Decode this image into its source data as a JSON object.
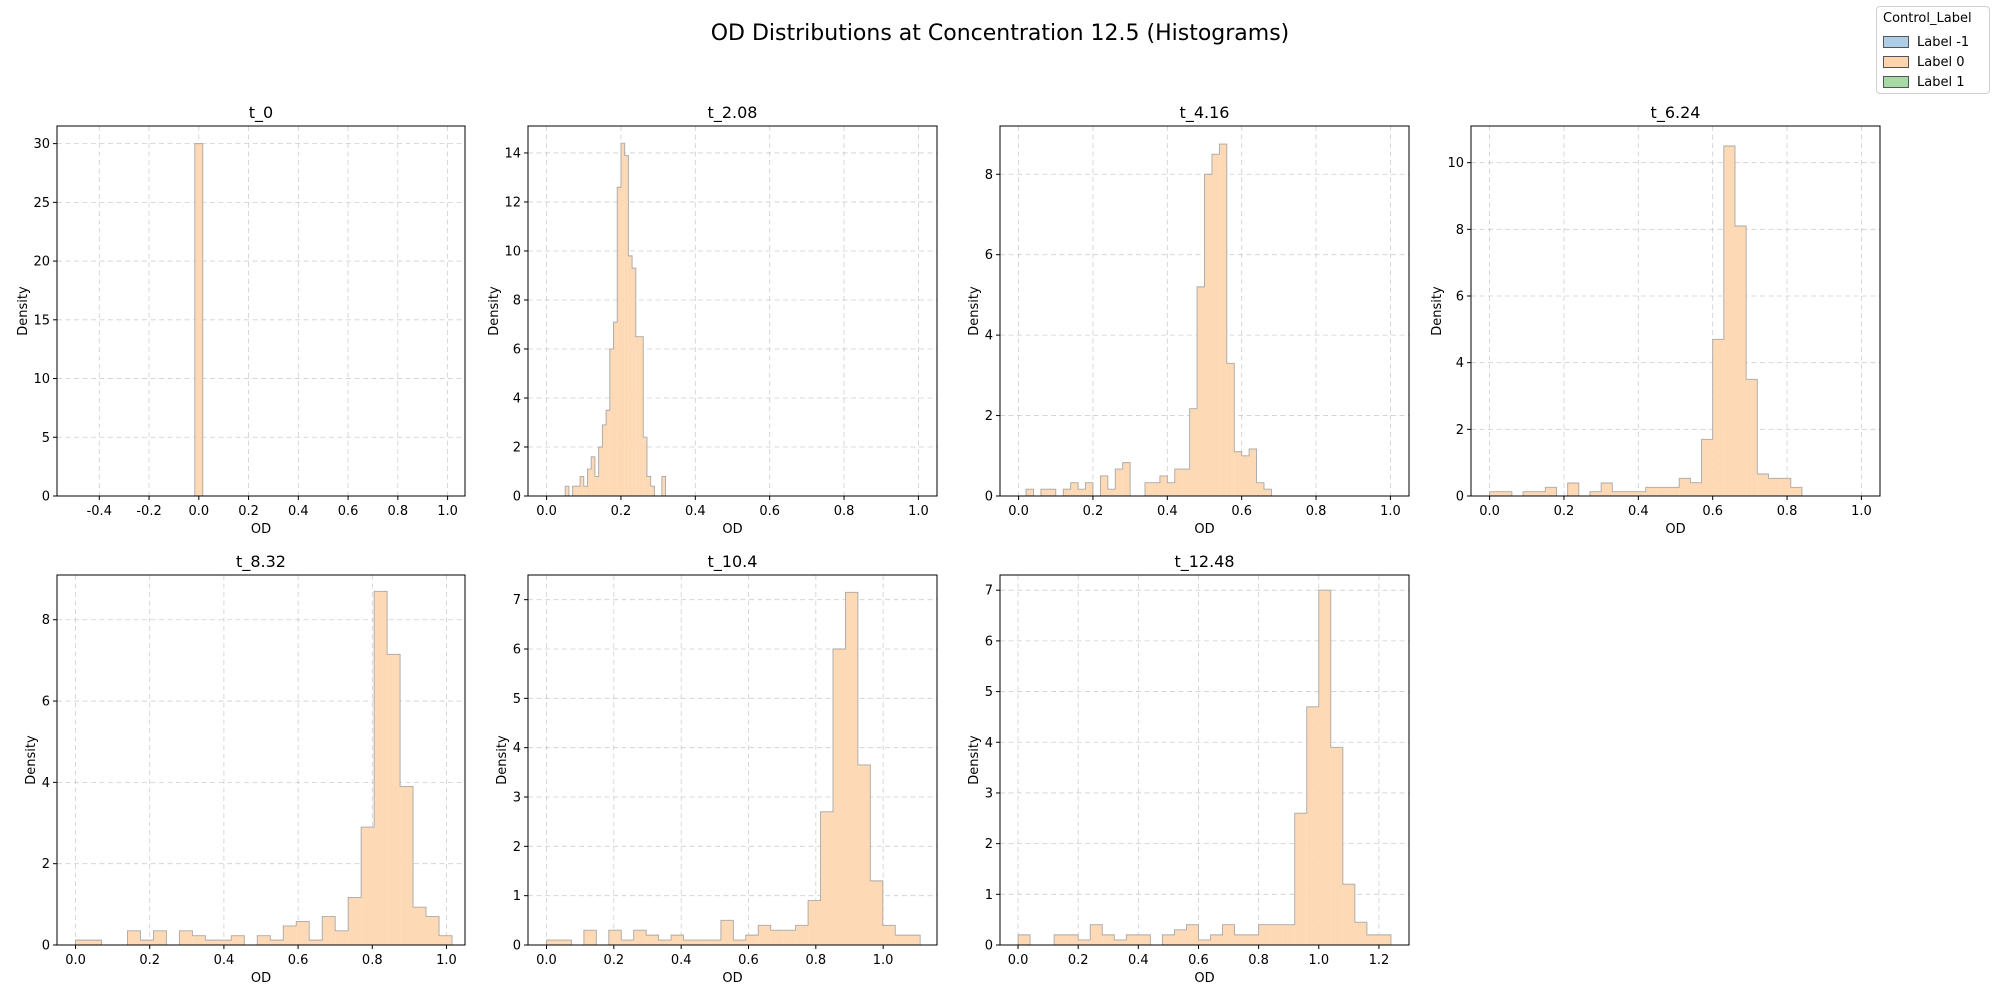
{
  "figure": {
    "title": "OD Distributions at Concentration 12.5 (Histograms)"
  },
  "legend": {
    "title": "Control_Label",
    "items": [
      {
        "label": "Label -1",
        "color": "#aecde6"
      },
      {
        "label": "Label 0",
        "color": "#fdd4ad"
      },
      {
        "label": "Label 1",
        "color": "#a6dba6"
      }
    ]
  },
  "style": {
    "hist_fill": "#fdd9b5",
    "hist_edge": "#a8a8a8"
  },
  "chart_data": [
    {
      "type": "histogram",
      "title": "t_0",
      "xlabel": "OD",
      "ylabel": "Density",
      "xlim": [
        -0.57,
        1.07
      ],
      "ylim": [
        0,
        31.5
      ],
      "xticks": [
        -0.4,
        -0.2,
        0.0,
        0.2,
        0.4,
        0.6,
        0.8,
        1.0
      ],
      "yticks": [
        0,
        5,
        10,
        15,
        20,
        25,
        30
      ],
      "grid": true,
      "series": [
        {
          "name": "Label 0",
          "bins": [
            [
              -0.016,
              0.016,
              30
            ]
          ]
        }
      ]
    },
    {
      "type": "histogram",
      "title": "t_2.08",
      "xlabel": "OD",
      "ylabel": "Density",
      "xlim": [
        -0.05,
        1.05
      ],
      "ylim": [
        0,
        15.1
      ],
      "xticks": [
        0.0,
        0.2,
        0.4,
        0.6,
        0.8,
        1.0
      ],
      "yticks": [
        0,
        2,
        4,
        6,
        8,
        10,
        12,
        14
      ],
      "grid": true,
      "series": [
        {
          "name": "Label 0",
          "bins": [
            [
              0.05,
              0.06,
              0.4
            ],
            [
              0.06,
              0.07,
              0.0
            ],
            [
              0.07,
              0.08,
              0.4
            ],
            [
              0.08,
              0.09,
              0.4
            ],
            [
              0.09,
              0.1,
              0.8
            ],
            [
              0.1,
              0.11,
              0.4
            ],
            [
              0.11,
              0.12,
              1.1
            ],
            [
              0.12,
              0.13,
              1.6
            ],
            [
              0.13,
              0.14,
              0.8
            ],
            [
              0.14,
              0.15,
              2.0
            ],
            [
              0.15,
              0.16,
              2.9
            ],
            [
              0.16,
              0.17,
              3.5
            ],
            [
              0.17,
              0.18,
              6.0
            ],
            [
              0.18,
              0.19,
              7.1
            ],
            [
              0.19,
              0.2,
              12.6
            ],
            [
              0.2,
              0.21,
              14.4
            ],
            [
              0.21,
              0.22,
              13.9
            ],
            [
              0.22,
              0.23,
              9.8
            ],
            [
              0.23,
              0.24,
              9.3
            ],
            [
              0.24,
              0.25,
              6.5
            ],
            [
              0.25,
              0.26,
              6.5
            ],
            [
              0.26,
              0.27,
              2.4
            ],
            [
              0.27,
              0.28,
              0.8
            ],
            [
              0.28,
              0.29,
              0.4
            ],
            [
              0.29,
              0.3,
              0.0
            ],
            [
              0.3,
              0.31,
              0.0
            ],
            [
              0.31,
              0.32,
              0.8
            ]
          ]
        }
      ]
    },
    {
      "type": "histogram",
      "title": "t_4.16",
      "xlabel": "OD",
      "ylabel": "Density",
      "xlim": [
        -0.05,
        1.05
      ],
      "ylim": [
        0,
        9.2
      ],
      "xticks": [
        0.0,
        0.2,
        0.4,
        0.6,
        0.8,
        1.0
      ],
      "yticks": [
        0,
        2,
        4,
        6,
        8
      ],
      "grid": true,
      "series": [
        {
          "name": "Label 0",
          "bins": [
            [
              0.0,
              0.02,
              0.0
            ],
            [
              0.02,
              0.04,
              0.17
            ],
            [
              0.04,
              0.06,
              0.0
            ],
            [
              0.06,
              0.08,
              0.17
            ],
            [
              0.08,
              0.1,
              0.17
            ],
            [
              0.1,
              0.12,
              0.0
            ],
            [
              0.12,
              0.14,
              0.17
            ],
            [
              0.14,
              0.16,
              0.33
            ],
            [
              0.16,
              0.18,
              0.17
            ],
            [
              0.18,
              0.2,
              0.33
            ],
            [
              0.2,
              0.22,
              0.0
            ],
            [
              0.22,
              0.24,
              0.5
            ],
            [
              0.24,
              0.26,
              0.17
            ],
            [
              0.26,
              0.28,
              0.67
            ],
            [
              0.28,
              0.3,
              0.83
            ],
            [
              0.3,
              0.32,
              0.0
            ],
            [
              0.32,
              0.34,
              0.0
            ],
            [
              0.34,
              0.36,
              0.33
            ],
            [
              0.36,
              0.38,
              0.33
            ],
            [
              0.38,
              0.4,
              0.5
            ],
            [
              0.4,
              0.42,
              0.33
            ],
            [
              0.42,
              0.44,
              0.67
            ],
            [
              0.44,
              0.46,
              0.67
            ],
            [
              0.46,
              0.48,
              2.17
            ],
            [
              0.48,
              0.5,
              5.2
            ],
            [
              0.5,
              0.52,
              8.0
            ],
            [
              0.52,
              0.54,
              8.5
            ],
            [
              0.54,
              0.56,
              8.75
            ],
            [
              0.56,
              0.58,
              3.3
            ],
            [
              0.58,
              0.6,
              1.1
            ],
            [
              0.6,
              0.62,
              1.0
            ],
            [
              0.62,
              0.64,
              1.17
            ],
            [
              0.64,
              0.66,
              0.33
            ],
            [
              0.66,
              0.68,
              0.17
            ]
          ]
        }
      ]
    },
    {
      "type": "histogram",
      "title": "t_6.24",
      "xlabel": "OD",
      "ylabel": "Density",
      "xlim": [
        -0.05,
        1.05
      ],
      "ylim": [
        0,
        11.1
      ],
      "xticks": [
        0.0,
        0.2,
        0.4,
        0.6,
        0.8,
        1.0
      ],
      "yticks": [
        0,
        2,
        4,
        6,
        8,
        10
      ],
      "grid": true,
      "series": [
        {
          "name": "Label 0",
          "bins": [
            [
              0.0,
              0.03,
              0.13
            ],
            [
              0.03,
              0.06,
              0.13
            ],
            [
              0.06,
              0.09,
              0.0
            ],
            [
              0.09,
              0.12,
              0.13
            ],
            [
              0.12,
              0.15,
              0.13
            ],
            [
              0.15,
              0.18,
              0.26
            ],
            [
              0.18,
              0.21,
              0.0
            ],
            [
              0.21,
              0.24,
              0.39
            ],
            [
              0.24,
              0.27,
              0.0
            ],
            [
              0.27,
              0.3,
              0.13
            ],
            [
              0.3,
              0.33,
              0.39
            ],
            [
              0.33,
              0.36,
              0.13
            ],
            [
              0.36,
              0.39,
              0.13
            ],
            [
              0.39,
              0.42,
              0.13
            ],
            [
              0.42,
              0.45,
              0.26
            ],
            [
              0.45,
              0.48,
              0.26
            ],
            [
              0.48,
              0.51,
              0.26
            ],
            [
              0.51,
              0.54,
              0.53
            ],
            [
              0.54,
              0.57,
              0.4
            ],
            [
              0.57,
              0.6,
              1.7
            ],
            [
              0.6,
              0.63,
              4.7
            ],
            [
              0.63,
              0.66,
              10.5
            ],
            [
              0.66,
              0.69,
              8.1
            ],
            [
              0.69,
              0.72,
              3.5
            ],
            [
              0.72,
              0.75,
              0.66
            ],
            [
              0.75,
              0.78,
              0.53
            ],
            [
              0.78,
              0.81,
              0.53
            ],
            [
              0.81,
              0.84,
              0.26
            ]
          ]
        }
      ]
    },
    {
      "type": "histogram",
      "title": "t_8.32",
      "xlabel": "OD",
      "ylabel": "Density",
      "xlim": [
        -0.05,
        1.05
      ],
      "ylim": [
        0,
        9.1
      ],
      "xticks": [
        0.0,
        0.2,
        0.4,
        0.6,
        0.8,
        1.0
      ],
      "yticks": [
        0,
        2,
        4,
        6,
        8
      ],
      "grid": true,
      "series": [
        {
          "name": "Label 0",
          "bins": [
            [
              0.0,
              0.035,
              0.12
            ],
            [
              0.035,
              0.07,
              0.12
            ],
            [
              0.07,
              0.105,
              0.0
            ],
            [
              0.105,
              0.14,
              0.0
            ],
            [
              0.14,
              0.175,
              0.35
            ],
            [
              0.175,
              0.21,
              0.12
            ],
            [
              0.21,
              0.245,
              0.35
            ],
            [
              0.245,
              0.28,
              0.0
            ],
            [
              0.28,
              0.315,
              0.35
            ],
            [
              0.315,
              0.35,
              0.23
            ],
            [
              0.35,
              0.385,
              0.12
            ],
            [
              0.385,
              0.42,
              0.12
            ],
            [
              0.42,
              0.455,
              0.23
            ],
            [
              0.455,
              0.49,
              0.0
            ],
            [
              0.49,
              0.525,
              0.23
            ],
            [
              0.525,
              0.56,
              0.12
            ],
            [
              0.56,
              0.595,
              0.47
            ],
            [
              0.595,
              0.63,
              0.58
            ],
            [
              0.63,
              0.665,
              0.12
            ],
            [
              0.665,
              0.7,
              0.7
            ],
            [
              0.7,
              0.735,
              0.35
            ],
            [
              0.735,
              0.77,
              1.17
            ],
            [
              0.77,
              0.805,
              2.9
            ],
            [
              0.805,
              0.84,
              8.7
            ],
            [
              0.84,
              0.875,
              7.15
            ],
            [
              0.875,
              0.91,
              3.9
            ],
            [
              0.91,
              0.945,
              0.93
            ],
            [
              0.945,
              0.98,
              0.7
            ],
            [
              0.98,
              1.015,
              0.23
            ]
          ]
        }
      ]
    },
    {
      "type": "histogram",
      "title": "t_10.4",
      "xlabel": "OD",
      "ylabel": "Density",
      "xlim": [
        -0.055,
        1.16
      ],
      "ylim": [
        0,
        7.5
      ],
      "xticks": [
        0.0,
        0.2,
        0.4,
        0.6,
        0.8,
        1.0
      ],
      "yticks": [
        0,
        1,
        2,
        3,
        4,
        5,
        6,
        7
      ],
      "grid": true,
      "series": [
        {
          "name": "Label 0",
          "bins": [
            [
              0.0,
              0.037,
              0.1
            ],
            [
              0.037,
              0.074,
              0.1
            ],
            [
              0.074,
              0.111,
              0.0
            ],
            [
              0.111,
              0.148,
              0.3
            ],
            [
              0.148,
              0.185,
              0.0
            ],
            [
              0.185,
              0.222,
              0.3
            ],
            [
              0.222,
              0.259,
              0.1
            ],
            [
              0.259,
              0.296,
              0.3
            ],
            [
              0.296,
              0.333,
              0.2
            ],
            [
              0.333,
              0.37,
              0.1
            ],
            [
              0.37,
              0.407,
              0.2
            ],
            [
              0.407,
              0.444,
              0.1
            ],
            [
              0.444,
              0.481,
              0.1
            ],
            [
              0.481,
              0.518,
              0.1
            ],
            [
              0.518,
              0.555,
              0.5
            ],
            [
              0.555,
              0.592,
              0.1
            ],
            [
              0.592,
              0.629,
              0.2
            ],
            [
              0.629,
              0.666,
              0.4
            ],
            [
              0.666,
              0.703,
              0.3
            ],
            [
              0.703,
              0.74,
              0.3
            ],
            [
              0.74,
              0.777,
              0.4
            ],
            [
              0.777,
              0.814,
              0.9
            ],
            [
              0.814,
              0.851,
              2.7
            ],
            [
              0.851,
              0.888,
              6.0
            ],
            [
              0.888,
              0.925,
              7.15
            ],
            [
              0.925,
              0.962,
              3.65
            ],
            [
              0.962,
              0.999,
              1.3
            ],
            [
              0.999,
              1.036,
              0.4
            ],
            [
              1.036,
              1.11,
              0.2
            ]
          ]
        }
      ]
    },
    {
      "type": "histogram",
      "title": "t_12.48",
      "xlabel": "OD",
      "ylabel": "Density",
      "xlim": [
        -0.06,
        1.3
      ],
      "ylim": [
        0,
        7.3
      ],
      "xticks": [
        0.0,
        0.2,
        0.4,
        0.6,
        0.8,
        1.0,
        1.2
      ],
      "yticks": [
        0,
        1,
        2,
        3,
        4,
        5,
        6,
        7
      ],
      "grid": true,
      "series": [
        {
          "name": "Label 0",
          "bins": [
            [
              0.0,
              0.04,
              0.2
            ],
            [
              0.04,
              0.08,
              0.0
            ],
            [
              0.08,
              0.12,
              0.0
            ],
            [
              0.12,
              0.16,
              0.2
            ],
            [
              0.16,
              0.2,
              0.2
            ],
            [
              0.2,
              0.24,
              0.1
            ],
            [
              0.24,
              0.28,
              0.4
            ],
            [
              0.28,
              0.32,
              0.2
            ],
            [
              0.32,
              0.36,
              0.1
            ],
            [
              0.36,
              0.4,
              0.2
            ],
            [
              0.4,
              0.44,
              0.2
            ],
            [
              0.44,
              0.48,
              0.0
            ],
            [
              0.48,
              0.52,
              0.2
            ],
            [
              0.52,
              0.56,
              0.3
            ],
            [
              0.56,
              0.6,
              0.4
            ],
            [
              0.6,
              0.64,
              0.1
            ],
            [
              0.64,
              0.68,
              0.2
            ],
            [
              0.68,
              0.72,
              0.4
            ],
            [
              0.72,
              0.76,
              0.2
            ],
            [
              0.76,
              0.8,
              0.2
            ],
            [
              0.8,
              0.84,
              0.4
            ],
            [
              0.84,
              0.88,
              0.4
            ],
            [
              0.88,
              0.92,
              0.4
            ],
            [
              0.92,
              0.96,
              2.6
            ],
            [
              0.96,
              1.0,
              4.7
            ],
            [
              1.0,
              1.04,
              7.0
            ],
            [
              1.04,
              1.08,
              3.9
            ],
            [
              1.08,
              1.12,
              1.2
            ],
            [
              1.12,
              1.16,
              0.45
            ],
            [
              1.16,
              1.24,
              0.2
            ]
          ]
        }
      ]
    }
  ]
}
